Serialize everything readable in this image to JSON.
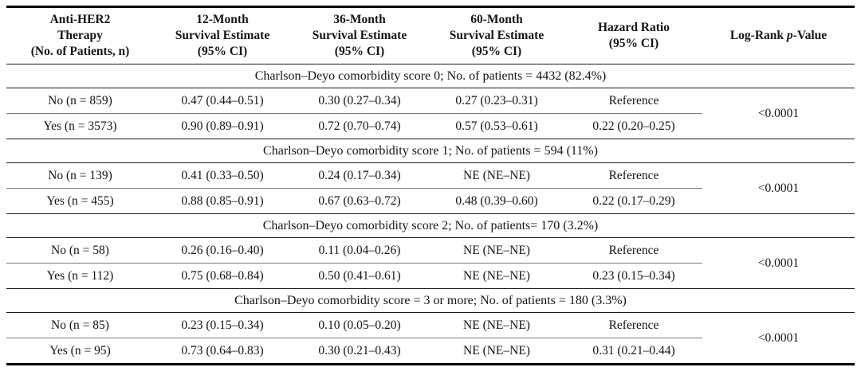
{
  "table": {
    "header": {
      "therapy": {
        "lines": [
          "Anti-HER2",
          "Therapy",
          "(No. of Patients, n)"
        ]
      },
      "m12": {
        "lines": [
          "12-Month",
          "Survival Estimate",
          "(95% CI)"
        ]
      },
      "m36": {
        "lines": [
          "36-Month",
          "Survival Estimate",
          "(95% CI)"
        ]
      },
      "m60": {
        "lines": [
          "60-Month",
          "Survival Estimate",
          "(95% CI)"
        ]
      },
      "hr": {
        "lines": [
          "Hazard Ratio",
          "(95% CI)"
        ]
      },
      "pvalue": {
        "prefix": "Log-Rank ",
        "italic": "p",
        "suffix": "-Value"
      }
    },
    "sections": [
      {
        "title": "Charlson–Deyo comorbidity score 0; No. of patients = 4432 (82.4%)",
        "p_value": "<0.0001",
        "rows": [
          {
            "therapy": "No (n = 859)",
            "s12": "0.47 (0.44–0.51)",
            "s36": "0.30 (0.27–0.34)",
            "s60": "0.27 (0.23–0.31)",
            "hr": "Reference"
          },
          {
            "therapy": "Yes (n = 3573)",
            "s12": "0.90 (0.89–0.91)",
            "s36": "0.72 (0.70–0.74)",
            "s60": "0.57 (0.53–0.61)",
            "hr": "0.22 (0.20–0.25)"
          }
        ]
      },
      {
        "title": "Charlson–Deyo comorbidity score 1; No. of patients = 594 (11%)",
        "p_value": "<0.0001",
        "rows": [
          {
            "therapy": "No (n = 139)",
            "s12": "0.41 (0.33–0.50)",
            "s36": "0.24 (0.17–0.34)",
            "s60": "NE (NE–NE)",
            "hr": "Reference"
          },
          {
            "therapy": "Yes (n = 455)",
            "s12": "0.88 (0.85–0.91)",
            "s36": "0.67 (0.63–0.72)",
            "s60": "0.48 (0.39–0.60)",
            "hr": "0.22 (0.17–0.29)"
          }
        ]
      },
      {
        "title": "Charlson–Deyo comorbidity score 2; No. of patients= 170 (3.2%)",
        "p_value": "<0.0001",
        "rows": [
          {
            "therapy": "No (n = 58)",
            "s12": "0.26 (0.16–0.40)",
            "s36": "0.11 (0.04–0.26)",
            "s60": "NE (NE–NE)",
            "hr": "Reference"
          },
          {
            "therapy": "Yes (n = 112)",
            "s12": "0.75 (0.68–0.84)",
            "s36": "0.50 (0.41–0.61)",
            "s60": "NE (NE–NE)",
            "hr": "0.23 (0.15–0.34)"
          }
        ]
      },
      {
        "title": "Charlson–Deyo comorbidity score = 3 or more; No. of patients = 180 (3.3%)",
        "p_value": "<0.0001",
        "rows": [
          {
            "therapy": "No (n = 85)",
            "s12": "0.23 (0.15–0.34)",
            "s36": "0.10 (0.05–0.20)",
            "s60": "NE (NE–NE)",
            "hr": "Reference"
          },
          {
            "therapy": "Yes (n = 95)",
            "s12": "0.73 (0.64–0.83)",
            "s36": "0.30 (0.21–0.43)",
            "s60": "NE (NE–NE)",
            "hr": "0.31 (0.21–0.44)"
          }
        ]
      }
    ]
  }
}
